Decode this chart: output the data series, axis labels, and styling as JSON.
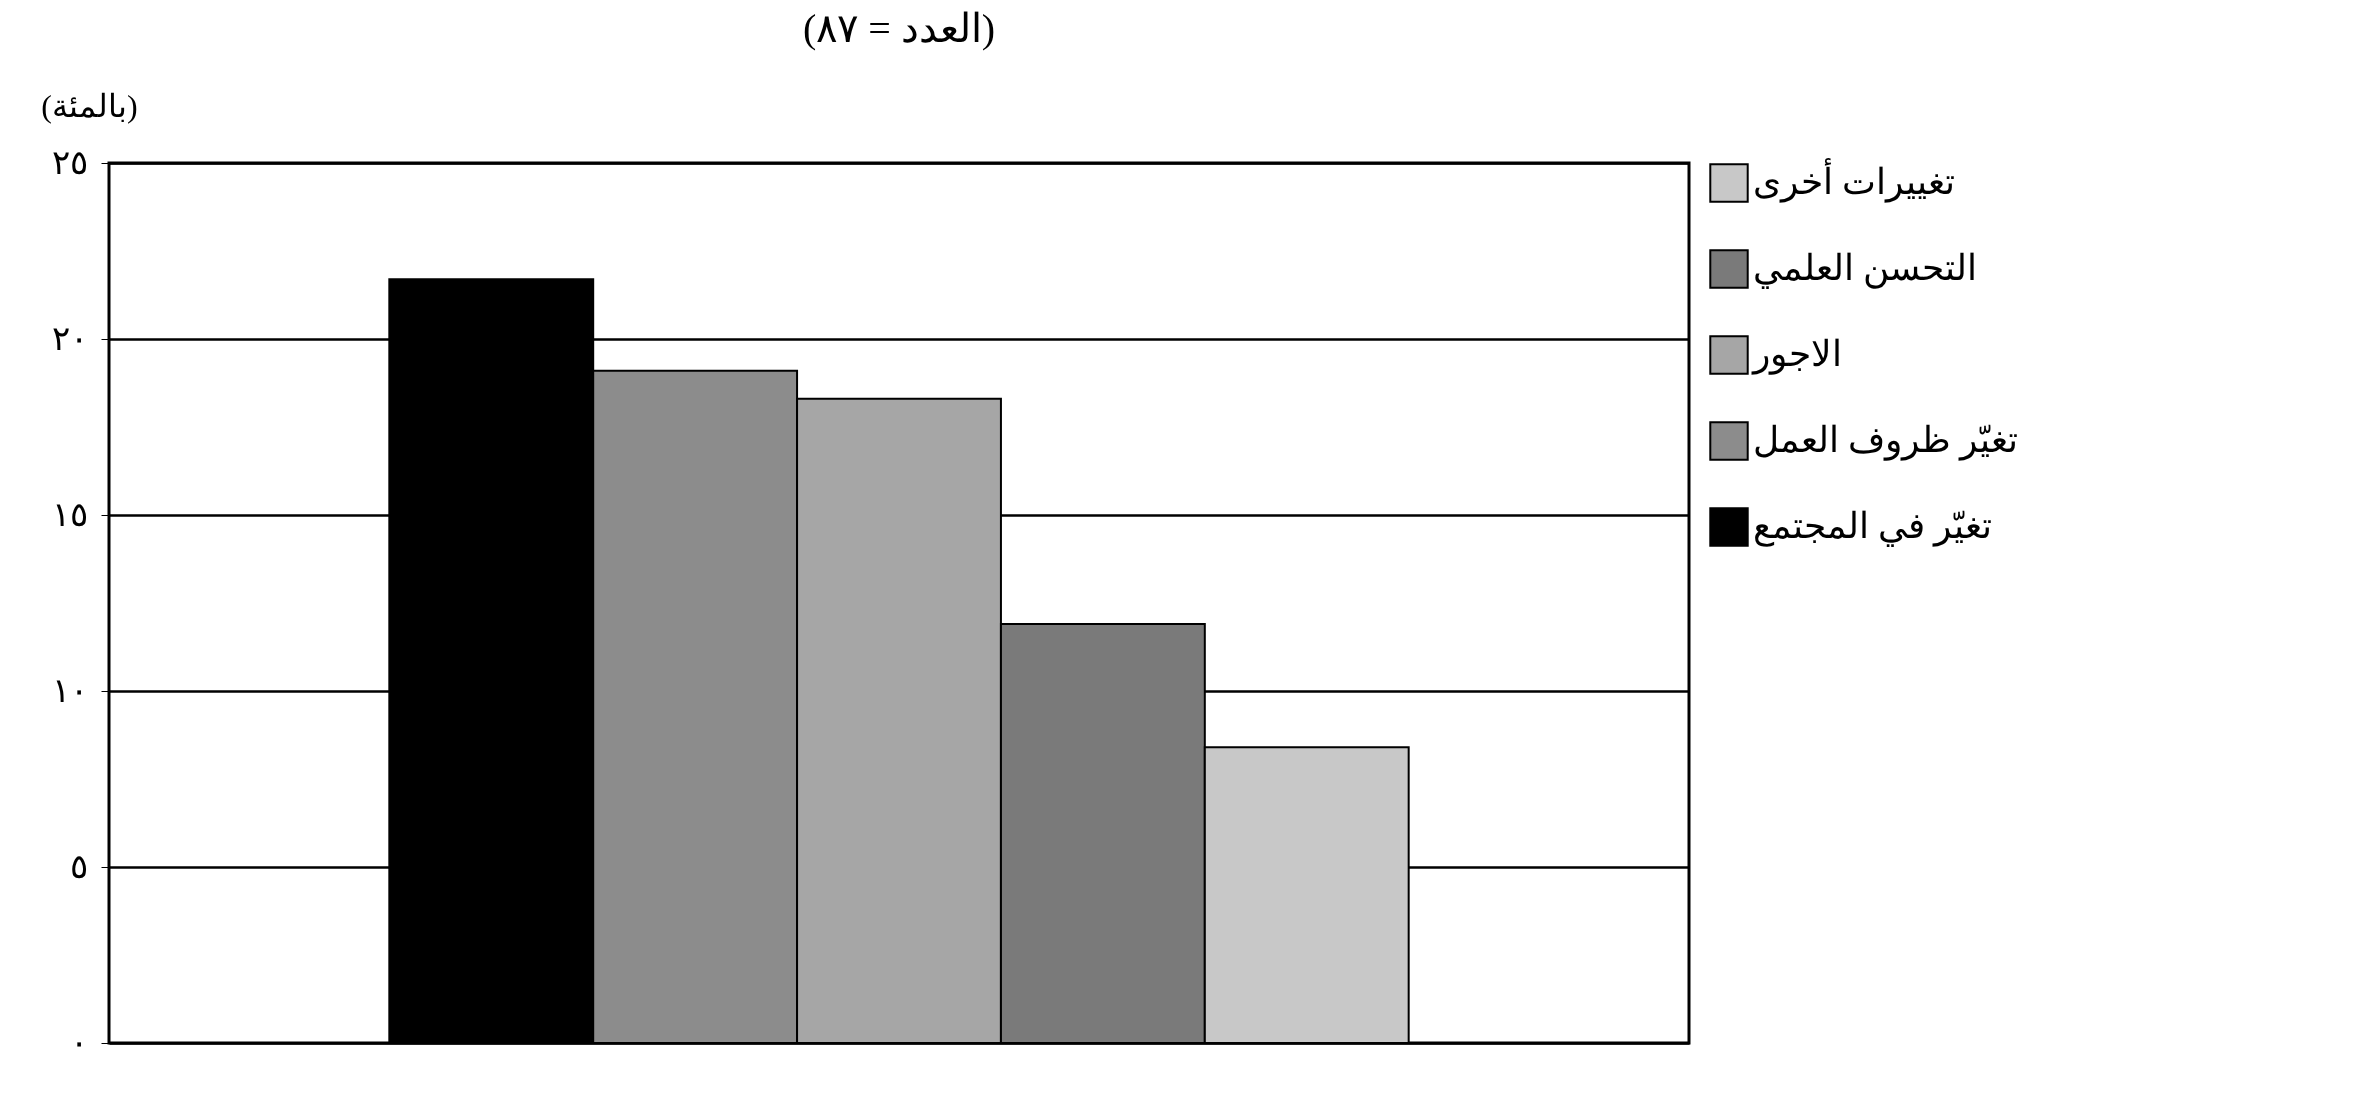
{
  "chart_data": {
    "type": "bar",
    "title": "(العدد = ٨٧)",
    "ylabel": "(بالمئة)",
    "categories": [
      null
    ],
    "series": [
      {
        "name": "تغيّر في المجتمع",
        "color": "#000000",
        "values": [
          21.7
        ]
      },
      {
        "name": "تغيّر ظروف العمل",
        "color": "#8c8c8c",
        "values": [
          19.1
        ]
      },
      {
        "name": "الاجور",
        "color": "#a6a6a6",
        "values": [
          18.3
        ]
      },
      {
        "name": "التحسن العلمي",
        "color": "#7a7a7a",
        "values": [
          11.9
        ]
      },
      {
        "name": "تغييرات أخرى",
        "color": "#c8c8c8",
        "values": [
          8.4
        ]
      }
    ],
    "ylim": [
      0,
      25
    ],
    "yticks": [
      {
        "value": 0,
        "label": "٠"
      },
      {
        "value": 5,
        "label": "٥"
      },
      {
        "value": 10,
        "label": "١٠"
      },
      {
        "value": 15,
        "label": "١٥"
      },
      {
        "value": 20,
        "label": "٢٠"
      },
      {
        "value": 25,
        "label": "٢٥"
      }
    ],
    "grid": "y",
    "legend": "right",
    "tick_labels": "y"
  }
}
